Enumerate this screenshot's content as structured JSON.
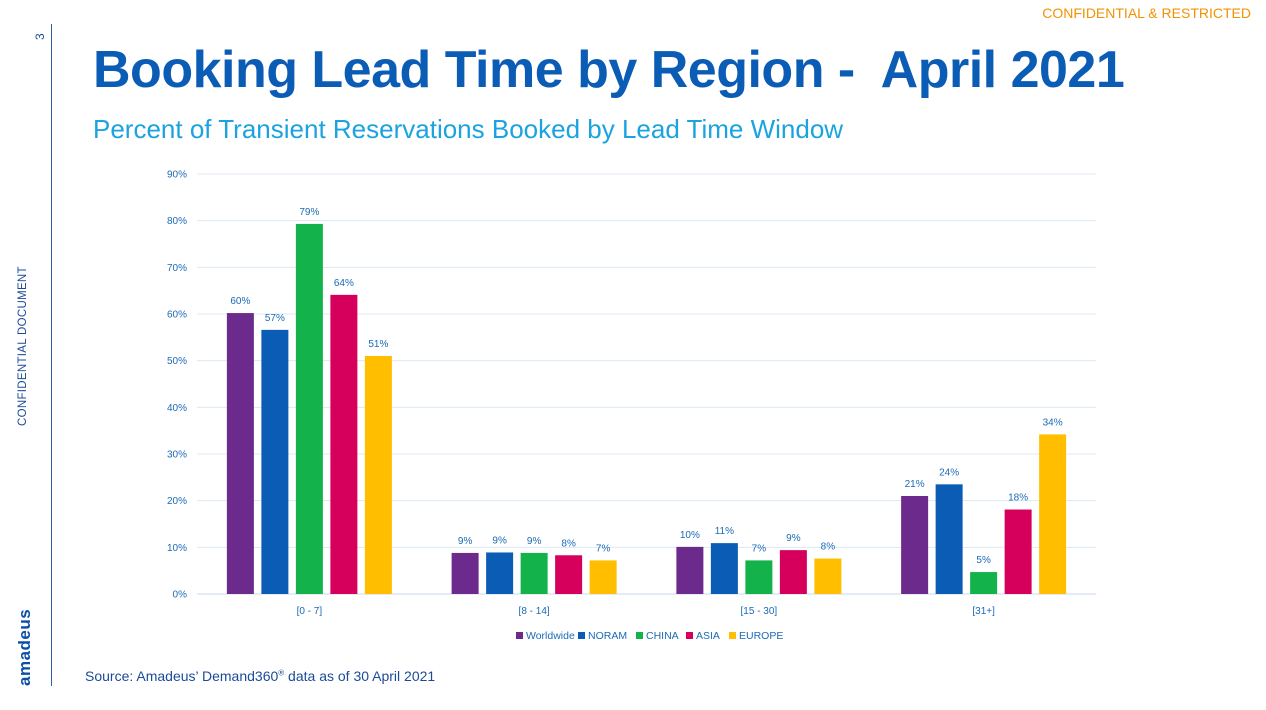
{
  "header": {
    "confidential_label": "CONFIDENTIAL & RESTRICTED",
    "page_number": "3",
    "side_label": "CONFIDENTIAL DOCUMENT",
    "logo_text": "amadeus"
  },
  "title": "Booking Lead Time by Region -  April 2021",
  "subtitle": "Percent of Transient Reservations Booked by Lead Time Window",
  "source": {
    "before": "Source: Amadeus’ Demand360",
    "mark": "®",
    "after": " data as of 30 April 2021"
  },
  "chart_data": {
    "type": "bar",
    "categories": [
      "[0 - 7]",
      "[8 - 14]",
      "[15 - 30]",
      "[31+]"
    ],
    "series": [
      {
        "name": "Worldwide",
        "color": "#6b2a8c",
        "values": [
          60,
          9,
          10,
          21
        ],
        "labels": [
          "60%",
          "9%",
          "10%",
          "21%"
        ],
        "actual": [
          60.2,
          8.8,
          10.1,
          21.0
        ]
      },
      {
        "name": "NORAM",
        "color": "#0b5cb5",
        "values": [
          57,
          9,
          11,
          24
        ],
        "labels": [
          "57%",
          "9%",
          "11%",
          "24%"
        ],
        "actual": [
          56.6,
          8.9,
          10.9,
          23.5
        ]
      },
      {
        "name": "CHINA",
        "color": "#13b24a",
        "values": [
          79,
          9,
          7,
          5
        ],
        "labels": [
          "79%",
          "9%",
          "7%",
          "5%"
        ],
        "actual": [
          79.3,
          8.8,
          7.2,
          4.7
        ]
      },
      {
        "name": "ASIA",
        "color": "#d6005c",
        "values": [
          64,
          8,
          9,
          18
        ],
        "labels": [
          "64%",
          "8%",
          "9%",
          "18%"
        ],
        "actual": [
          64.1,
          8.3,
          9.4,
          18.1
        ]
      },
      {
        "name": "EUROPE",
        "color": "#ffbf00",
        "values": [
          51,
          7,
          8,
          34
        ],
        "labels": [
          "51%",
          "7%",
          "8%",
          "34%"
        ],
        "actual": [
          51.0,
          7.2,
          7.6,
          34.2
        ]
      }
    ],
    "y_ticks": [
      "0%",
      "10%",
      "20%",
      "30%",
      "40%",
      "50%",
      "60%",
      "70%",
      "80%",
      "90%"
    ],
    "ylim": [
      0,
      90
    ],
    "grid": true,
    "legend": "bottom"
  }
}
